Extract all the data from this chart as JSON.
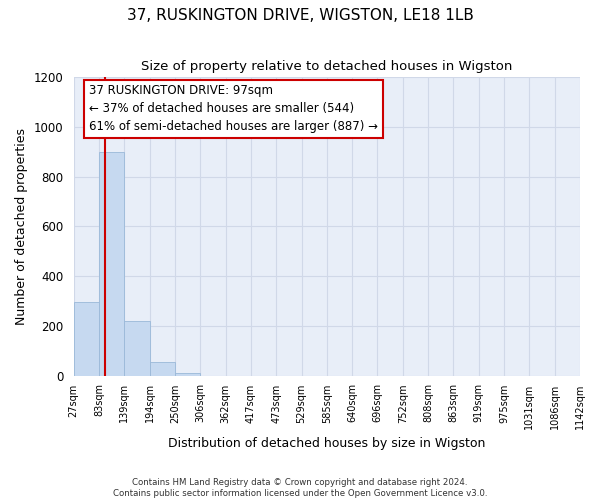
{
  "title": "37, RUSKINGTON DRIVE, WIGSTON, LE18 1LB",
  "subtitle": "Size of property relative to detached houses in Wigston",
  "xlabel": "Distribution of detached houses by size in Wigston",
  "ylabel": "Number of detached properties",
  "bar_edges": [
    27,
    83,
    139,
    194,
    250,
    306,
    362,
    417,
    473,
    529,
    585,
    640,
    696,
    752,
    808,
    863,
    919,
    975,
    1031,
    1086,
    1142
  ],
  "bar_heights": [
    295,
    900,
    220,
    55,
    10,
    0,
    0,
    0,
    0,
    0,
    0,
    0,
    0,
    0,
    0,
    0,
    0,
    0,
    0,
    0
  ],
  "bar_color": "#c6d9f0",
  "bar_edgecolor": "#9ab8d8",
  "grid_color": "#d0d8e8",
  "bg_color": "#e8eef8",
  "property_line_color": "#cc0000",
  "property_sqm": 97,
  "annotation_line1": "37 RUSKINGTON DRIVE: 97sqm",
  "annotation_line2": "← 37% of detached houses are smaller (544)",
  "annotation_line3": "61% of semi-detached houses are larger (887) →",
  "annotation_box_edgecolor": "#cc0000",
  "ylim": [
    0,
    1200
  ],
  "yticks": [
    0,
    200,
    400,
    600,
    800,
    1000,
    1200
  ],
  "tick_labels": [
    "27sqm",
    "83sqm",
    "139sqm",
    "194sqm",
    "250sqm",
    "306sqm",
    "362sqm",
    "417sqm",
    "473sqm",
    "529sqm",
    "585sqm",
    "640sqm",
    "696sqm",
    "752sqm",
    "808sqm",
    "863sqm",
    "919sqm",
    "975sqm",
    "1031sqm",
    "1086sqm",
    "1142sqm"
  ],
  "footer_line1": "Contains HM Land Registry data © Crown copyright and database right 2024.",
  "footer_line2": "Contains public sector information licensed under the Open Government Licence v3.0."
}
